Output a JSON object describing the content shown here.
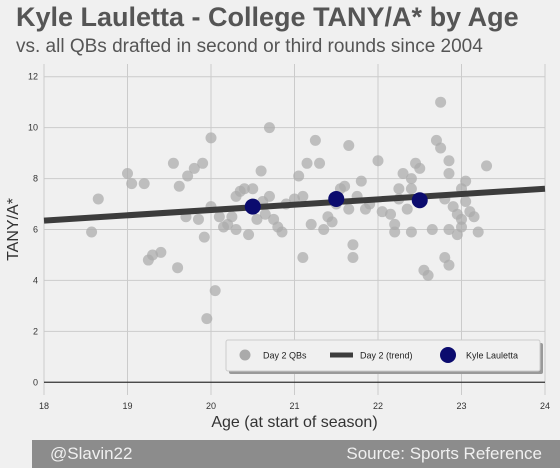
{
  "header": {
    "title": "Kyle Lauletta - College TANY/A* by Age",
    "subtitle": "vs. all QBs drafted in second or third rounds since 2004"
  },
  "footer": {
    "left": "@Slavin22",
    "right": "Source: Sports Reference"
  },
  "colors": {
    "background": "#f0f0f0",
    "points": "#aaaaaa",
    "trend": "#3c3c3c",
    "highlight": "#0b0b6e",
    "footer": "#8c8c8c"
  },
  "chart_data": {
    "type": "scatter",
    "xlabel": "Age (at start of season)",
    "ylabel": "TANY/A*",
    "xlim": [
      18,
      24
    ],
    "ylim": [
      -0.5,
      12.5
    ],
    "xticks": [
      18,
      19,
      20,
      21,
      22,
      23,
      24
    ],
    "yticks": [
      0,
      2,
      4,
      6,
      8,
      10,
      12
    ],
    "grid": true,
    "legend_position": "bottom-right",
    "legend": [
      "Day 2 QBs",
      "Day 2 (trend)",
      "Kyle Lauletta"
    ],
    "series": [
      {
        "name": "Day 2 QBs",
        "kind": "scatter",
        "points": [
          [
            18.57,
            5.9
          ],
          [
            18.65,
            7.2
          ],
          [
            19.0,
            8.2
          ],
          [
            19.05,
            7.8
          ],
          [
            19.2,
            7.8
          ],
          [
            19.25,
            4.8
          ],
          [
            19.3,
            5.0
          ],
          [
            19.4,
            5.1
          ],
          [
            19.55,
            8.6
          ],
          [
            19.6,
            4.5
          ],
          [
            19.62,
            7.7
          ],
          [
            19.7,
            6.5
          ],
          [
            19.72,
            8.1
          ],
          [
            19.8,
            8.4
          ],
          [
            19.85,
            6.4
          ],
          [
            19.9,
            8.6
          ],
          [
            19.92,
            5.7
          ],
          [
            19.95,
            2.5
          ],
          [
            20.0,
            6.9
          ],
          [
            20.0,
            9.6
          ],
          [
            20.05,
            3.6
          ],
          [
            20.1,
            6.5
          ],
          [
            20.15,
            6.1
          ],
          [
            20.2,
            6.2
          ],
          [
            20.25,
            6.5
          ],
          [
            20.3,
            7.3
          ],
          [
            20.3,
            6.0
          ],
          [
            20.35,
            7.5
          ],
          [
            20.4,
            7.6
          ],
          [
            20.45,
            5.8
          ],
          [
            20.5,
            7.0
          ],
          [
            20.5,
            7.6
          ],
          [
            20.55,
            6.4
          ],
          [
            20.6,
            8.3
          ],
          [
            20.62,
            7.1
          ],
          [
            20.65,
            6.6
          ],
          [
            20.7,
            7.3
          ],
          [
            20.7,
            10.0
          ],
          [
            20.75,
            6.4
          ],
          [
            20.8,
            6.1
          ],
          [
            20.85,
            5.9
          ],
          [
            20.9,
            7.0
          ],
          [
            21.0,
            7.2
          ],
          [
            21.05,
            8.1
          ],
          [
            21.1,
            4.9
          ],
          [
            21.1,
            7.3
          ],
          [
            21.15,
            8.6
          ],
          [
            21.2,
            6.2
          ],
          [
            21.25,
            9.5
          ],
          [
            21.3,
            8.6
          ],
          [
            21.35,
            6.0
          ],
          [
            21.4,
            6.5
          ],
          [
            21.45,
            6.3
          ],
          [
            21.5,
            7.0
          ],
          [
            21.55,
            7.6
          ],
          [
            21.6,
            7.7
          ],
          [
            21.65,
            6.8
          ],
          [
            21.65,
            9.3
          ],
          [
            21.7,
            5.4
          ],
          [
            21.7,
            4.9
          ],
          [
            21.75,
            7.3
          ],
          [
            21.8,
            7.9
          ],
          [
            21.85,
            6.8
          ],
          [
            21.9,
            7.0
          ],
          [
            22.0,
            8.7
          ],
          [
            22.05,
            6.7
          ],
          [
            22.15,
            6.6
          ],
          [
            22.2,
            5.9
          ],
          [
            22.2,
            6.2
          ],
          [
            22.25,
            7.2
          ],
          [
            22.25,
            7.6
          ],
          [
            22.3,
            8.2
          ],
          [
            22.35,
            6.8
          ],
          [
            22.4,
            8.0
          ],
          [
            22.4,
            5.9
          ],
          [
            22.45,
            8.6
          ],
          [
            22.5,
            8.4
          ],
          [
            22.5,
            7.1
          ],
          [
            22.55,
            4.4
          ],
          [
            22.6,
            4.2
          ],
          [
            22.65,
            6.0
          ],
          [
            22.7,
            9.5
          ],
          [
            22.75,
            9.2
          ],
          [
            22.8,
            7.2
          ],
          [
            22.85,
            6.0
          ],
          [
            22.9,
            6.9
          ],
          [
            22.95,
            5.8
          ],
          [
            23.0,
            7.6
          ],
          [
            23.05,
            7.9
          ],
          [
            23.1,
            6.7
          ],
          [
            23.15,
            6.5
          ],
          [
            23.2,
            5.9
          ],
          [
            22.75,
            11.0
          ],
          [
            22.8,
            4.9
          ],
          [
            22.85,
            4.6
          ],
          [
            22.85,
            8.2
          ],
          [
            22.85,
            8.7
          ],
          [
            22.95,
            6.6
          ],
          [
            23.0,
            6.4
          ],
          [
            23.0,
            6.1
          ],
          [
            23.05,
            7.1
          ],
          [
            23.3,
            8.5
          ],
          [
            22.4,
            7.6
          ]
        ]
      },
      {
        "name": "Day 2 (trend)",
        "kind": "line",
        "points": [
          [
            18.0,
            6.35
          ],
          [
            24.0,
            7.6
          ]
        ]
      },
      {
        "name": "Kyle Lauletta",
        "kind": "scatter",
        "points": [
          [
            20.5,
            6.9
          ],
          [
            21.5,
            7.2
          ],
          [
            22.5,
            7.15
          ]
        ]
      }
    ]
  }
}
